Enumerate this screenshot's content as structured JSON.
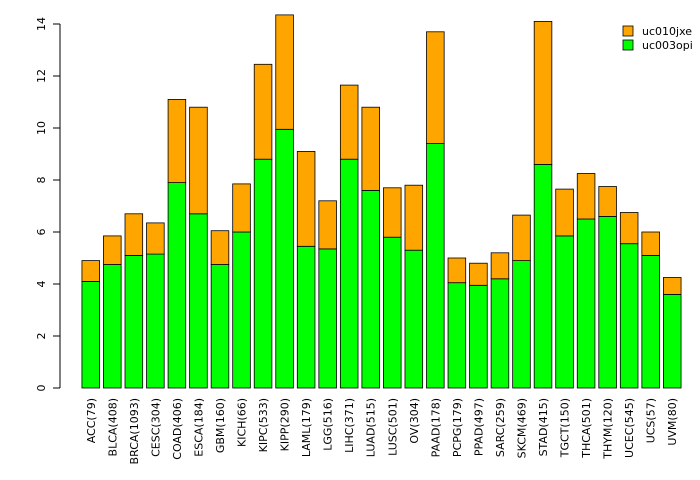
{
  "chart_data": {
    "type": "bar",
    "stacked": true,
    "categories": [
      "ACC(79)",
      "BLCA(408)",
      "BRCA(1093)",
      "CESC(304)",
      "COAD(406)",
      "ESCA(184)",
      "GBM(160)",
      "KICH(66)",
      "KIPC(533)",
      "KIPP(290)",
      "LAML(179)",
      "LGG(516)",
      "LIHC(371)",
      "LUAD(515)",
      "LUSC(501)",
      "OV(304)",
      "PAAD(178)",
      "PCPG(179)",
      "PPAD(497)",
      "SARC(259)",
      "SKCM(469)",
      "STAD(415)",
      "TGCT(150)",
      "THCA(501)",
      "THYM(120)",
      "UCEC(545)",
      "UCS(57)",
      "UVM(80)"
    ],
    "series": [
      {
        "name": "uc003opi",
        "color": "#00ff00",
        "values": [
          4.1,
          4.75,
          5.1,
          5.15,
          7.9,
          6.7,
          4.75,
          6.0,
          8.8,
          9.95,
          5.45,
          5.35,
          8.8,
          7.6,
          5.8,
          5.3,
          9.4,
          4.05,
          3.95,
          4.2,
          4.9,
          8.6,
          5.85,
          6.5,
          6.6,
          5.55,
          5.1,
          3.6
        ]
      },
      {
        "name": "uc010jxe",
        "color": "#ffa500",
        "values": [
          0.8,
          1.1,
          1.6,
          1.2,
          3.2,
          4.1,
          1.3,
          1.85,
          3.65,
          4.4,
          3.65,
          1.85,
          2.85,
          3.2,
          1.9,
          2.5,
          4.3,
          0.95,
          0.85,
          1.0,
          1.75,
          5.5,
          1.8,
          1.75,
          1.15,
          1.2,
          0.9,
          0.65
        ]
      }
    ],
    "ylim": [
      0,
      14
    ],
    "yticks": [
      0,
      2,
      4,
      6,
      8,
      10,
      12,
      14
    ],
    "legend_order": [
      "uc010jxe",
      "uc003opi"
    ],
    "legend_position": "top-right",
    "grid": false
  }
}
